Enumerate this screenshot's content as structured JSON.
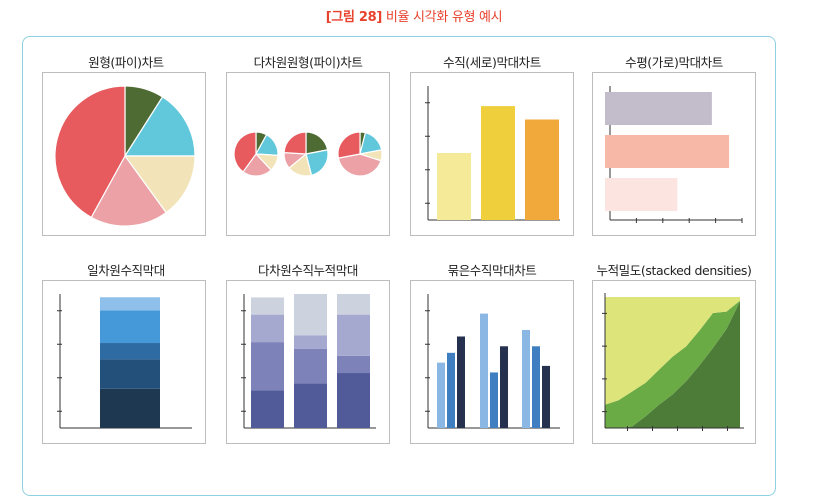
{
  "caption": {
    "prefix": "[그림 28]",
    "title": "비율 시각화 유형 예시"
  },
  "colors": {
    "caption": "#e8412c",
    "border": "#8fd0e3"
  },
  "chart_data": [
    {
      "type": "pie",
      "title": "원형(파이)차트",
      "series": [
        {
          "values": [
            9,
            16,
            15,
            18,
            42
          ],
          "colors": [
            "#4e6b34",
            "#61c8dc",
            "#f2e4b8",
            "#eba1a5",
            "#e75a5e"
          ]
        }
      ]
    },
    {
      "type": "pie",
      "title": "다차원원형(파이)차트",
      "series": [
        {
          "values": [
            8,
            18,
            12,
            22,
            40
          ],
          "colors": [
            "#4e6b34",
            "#61c8dc",
            "#f2e4b8",
            "#eba1a5",
            "#e75a5e"
          ]
        },
        {
          "values": [
            22,
            24,
            18,
            12,
            24
          ],
          "colors": [
            "#4e6b34",
            "#61c8dc",
            "#f2e4b8",
            "#eba1a5",
            "#e75a5e"
          ]
        },
        {
          "values": [
            4,
            18,
            8,
            42,
            28
          ],
          "colors": [
            "#4e6b34",
            "#61c8dc",
            "#f2e4b8",
            "#eba1a5",
            "#e75a5e"
          ]
        }
      ]
    },
    {
      "type": "bar",
      "title": "수직(세로)막대차트",
      "orientation": "vertical",
      "values": [
        2,
        3.4,
        3
      ],
      "ylim": [
        0,
        4
      ],
      "colors": [
        "#f5ea97",
        "#efd03c",
        "#f2a93b"
      ]
    },
    {
      "type": "bar",
      "title": "수평(가로)막대차트",
      "orientation": "horizontal",
      "values": [
        3.1,
        3.6,
        2.1
      ],
      "xlim": [
        0,
        3.8
      ],
      "colors": [
        "#c2bccb",
        "#f7b8a8",
        "#fce5e1"
      ]
    },
    {
      "type": "bar",
      "title": "일차원수직막대",
      "stacked": true,
      "values": [
        1.2,
        0.9,
        0.5,
        1,
        0.4
      ],
      "ylim": [
        0,
        4.1
      ],
      "colors": [
        "#1f3852",
        "#23507a",
        "#2f6ba3",
        "#4599d8",
        "#8ec0eb"
      ]
    },
    {
      "type": "bar",
      "title": "다차원수직누적막대",
      "stacked": true,
      "stacks": [
        [
          1.1,
          1.4,
          0.8,
          0.5
        ],
        [
          1.3,
          1,
          0.4,
          1.2
        ],
        [
          1.6,
          0.5,
          1.2,
          0.6
        ]
      ],
      "ylim": [
        0,
        3.9
      ],
      "colors": [
        "#525b9a",
        "#7d82b9",
        "#a5a9d0",
        "#cdd3de"
      ]
    },
    {
      "type": "bar",
      "title": "묶은수직막대차트",
      "grouped": true,
      "groups": [
        [
          2,
          2.3,
          2.8
        ],
        [
          3.5,
          1.7,
          2.5
        ],
        [
          3,
          2.5,
          1.9
        ]
      ],
      "ylim": [
        0,
        4.1
      ],
      "colors": [
        "#8ab7e3",
        "#3f7fc1",
        "#26304f"
      ]
    },
    {
      "type": "area",
      "title": "누적밀도(stacked densities)",
      "stacked": true,
      "x": [
        0,
        1,
        2,
        3,
        4,
        5,
        6,
        7,
        8,
        9,
        10
      ],
      "series": [
        {
          "values": [
            0,
            0,
            0.1,
            0.8,
            1.6,
            2.3,
            3.2,
            4.3,
            5.5,
            6.8,
            8.7
          ],
          "color": "#4d7b38"
        },
        {
          "values": [
            1.6,
            1.9,
            2.4,
            2.3,
            2.4,
            2.6,
            2.4,
            2.4,
            2.4,
            1.2,
            0.05
          ],
          "color": "#6bab45"
        },
        {
          "values": [
            7.4,
            7.1,
            6.5,
            5.9,
            5,
            4.1,
            3.4,
            2.3,
            1.1,
            1,
            0.25
          ],
          "color": "#dde47a"
        }
      ],
      "ylim": [
        0,
        9
      ]
    }
  ]
}
